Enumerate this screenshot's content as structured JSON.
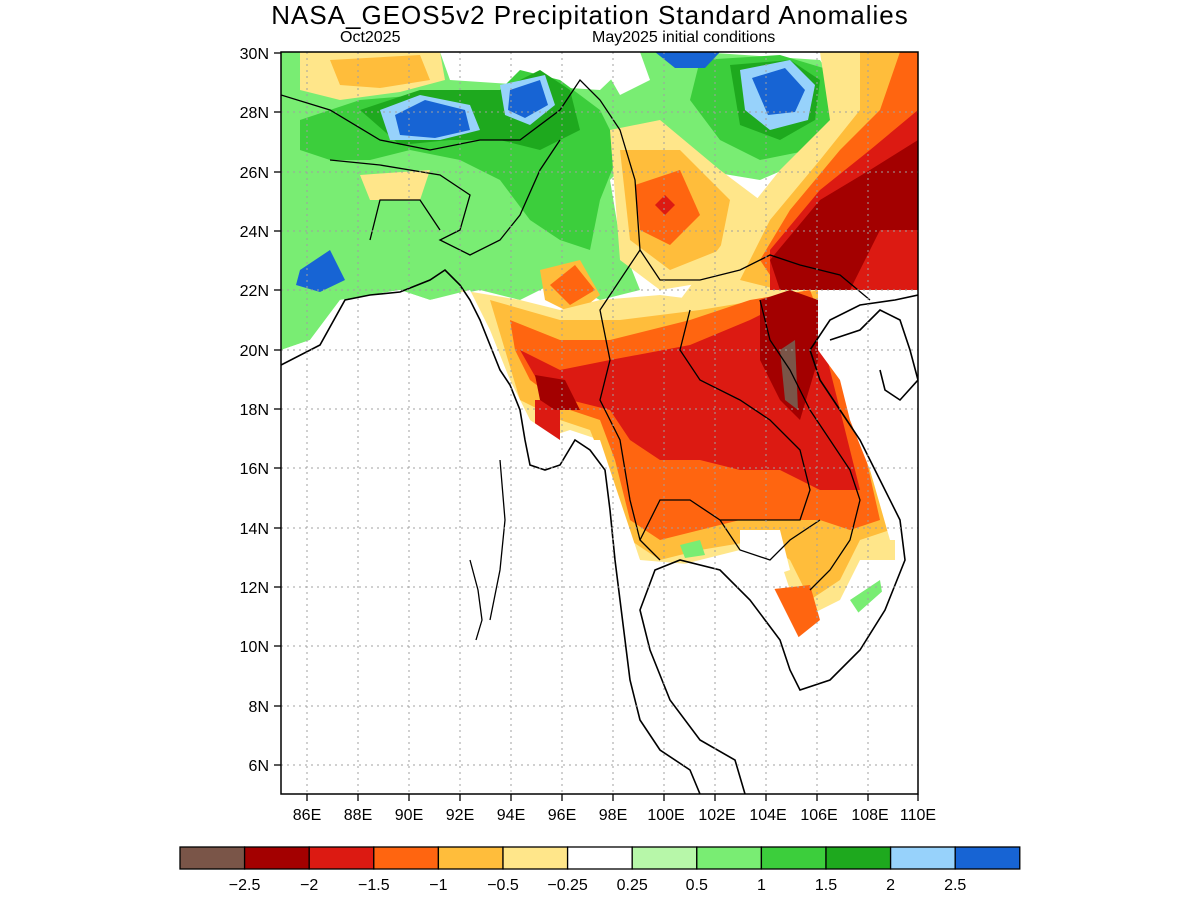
{
  "title": "NASA_GEOS5v2 Precipitation Standard Anomalies",
  "subtitle_left": "Oct2025",
  "subtitle_right": "May2025 initial conditions",
  "map": {
    "lon_range": [
      85,
      110
    ],
    "lat_range": [
      5,
      30
    ],
    "lat_ticks": [
      "6N",
      "8N",
      "10N",
      "12N",
      "14N",
      "16N",
      "18N",
      "20N",
      "22N",
      "24N",
      "26N",
      "28N",
      "30N"
    ],
    "lon_ticks": [
      "86E",
      "88E",
      "90E",
      "92E",
      "94E",
      "96E",
      "98E",
      "100E",
      "102E",
      "104E",
      "106E",
      "108E",
      "110E"
    ]
  },
  "colorbar": {
    "colors": [
      "#7a5548",
      "#a30000",
      "#dc1a12",
      "#ff6510",
      "#ffbd3b",
      "#ffe68a",
      "#ffffff",
      "#b7f7a9",
      "#79ed73",
      "#3cce3c",
      "#1ea91e",
      "#97d2fb",
      "#1764d4"
    ],
    "labels": [
      "−2.5",
      "−2",
      "−1.5",
      "−1",
      "−0.5",
      "−0.25",
      "0.25",
      "0.5",
      "1",
      "1.5",
      "2",
      "2.5"
    ]
  }
}
